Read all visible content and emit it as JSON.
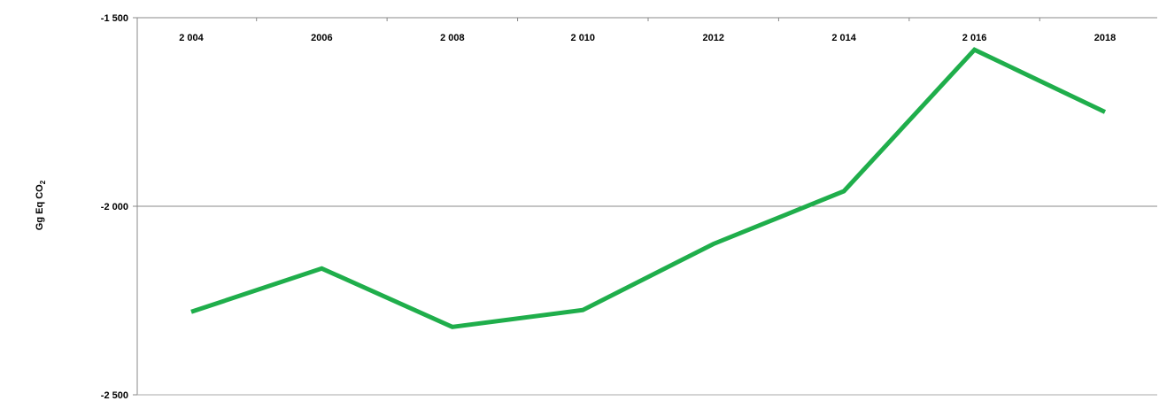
{
  "chart_data": {
    "type": "line",
    "title": "",
    "xlabel": "",
    "ylabel": "Gg Eq CO",
    "ylabel_subscript": "2",
    "x": [
      "2 004",
      "2006",
      "2 008",
      "2 010",
      "2012",
      "2 014",
      "2 016",
      "2018"
    ],
    "y_ticks": [
      "-1 500",
      "-2 000",
      "-2 500"
    ],
    "y_tick_values": [
      -1500,
      -2000,
      -2500
    ],
    "ylim": [
      -2500,
      -1500
    ],
    "y_inverted": true,
    "x_axis_position": "top",
    "grid": "horizontal at -2000",
    "series": [
      {
        "values": [
          -2280,
          -2165,
          -2320,
          -2275,
          -2100,
          -1960,
          -1585,
          -1750
        ],
        "color": "#1fae4b"
      }
    ]
  }
}
